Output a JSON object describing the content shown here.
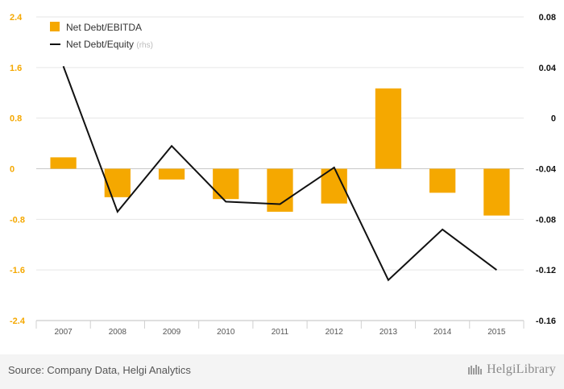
{
  "chart_data": {
    "type": "bar",
    "categories": [
      "2007",
      "2008",
      "2009",
      "2010",
      "2011",
      "2012",
      "2013",
      "2014",
      "2015"
    ],
    "series": [
      {
        "name": "Net Debt/EBITDA",
        "type": "bar",
        "axis": "left",
        "color": "#f5a800",
        "values": [
          0.18,
          -0.45,
          -0.17,
          -0.48,
          -0.68,
          -0.55,
          1.27,
          -0.38,
          -0.74
        ]
      },
      {
        "name": "Net Debt/Equity",
        "name_suffix": "(rhs)",
        "type": "line",
        "axis": "right",
        "color": "#111111",
        "values": [
          0.041,
          -0.074,
          -0.022,
          -0.066,
          -0.068,
          -0.039,
          -0.128,
          -0.088,
          -0.12
        ]
      }
    ],
    "y_left": {
      "ylim": [
        -2.4,
        2.4
      ],
      "ticks": [
        2.4,
        1.6,
        0.8,
        0,
        -0.8,
        -1.6,
        -2.4
      ],
      "tick_labels": [
        "2.4",
        "1.6",
        "0.8",
        "0",
        "-0.8",
        "-1.6",
        "-2.4"
      ],
      "tick_color": "#f5a800"
    },
    "y_right": {
      "ylim": [
        -0.16,
        0.08
      ],
      "ticks": [
        0.08,
        0.04,
        0,
        -0.04,
        -0.08,
        -0.12,
        -0.16
      ],
      "tick_labels": [
        "0.08",
        "0.04",
        "0",
        "-0.04",
        "-0.08",
        "-0.12",
        "-0.16"
      ]
    },
    "grid": true,
    "legend": "top-left"
  },
  "footer": {
    "source": "Source: Company Data, Helgi Analytics",
    "logo_text": "HelgiLibrary"
  }
}
